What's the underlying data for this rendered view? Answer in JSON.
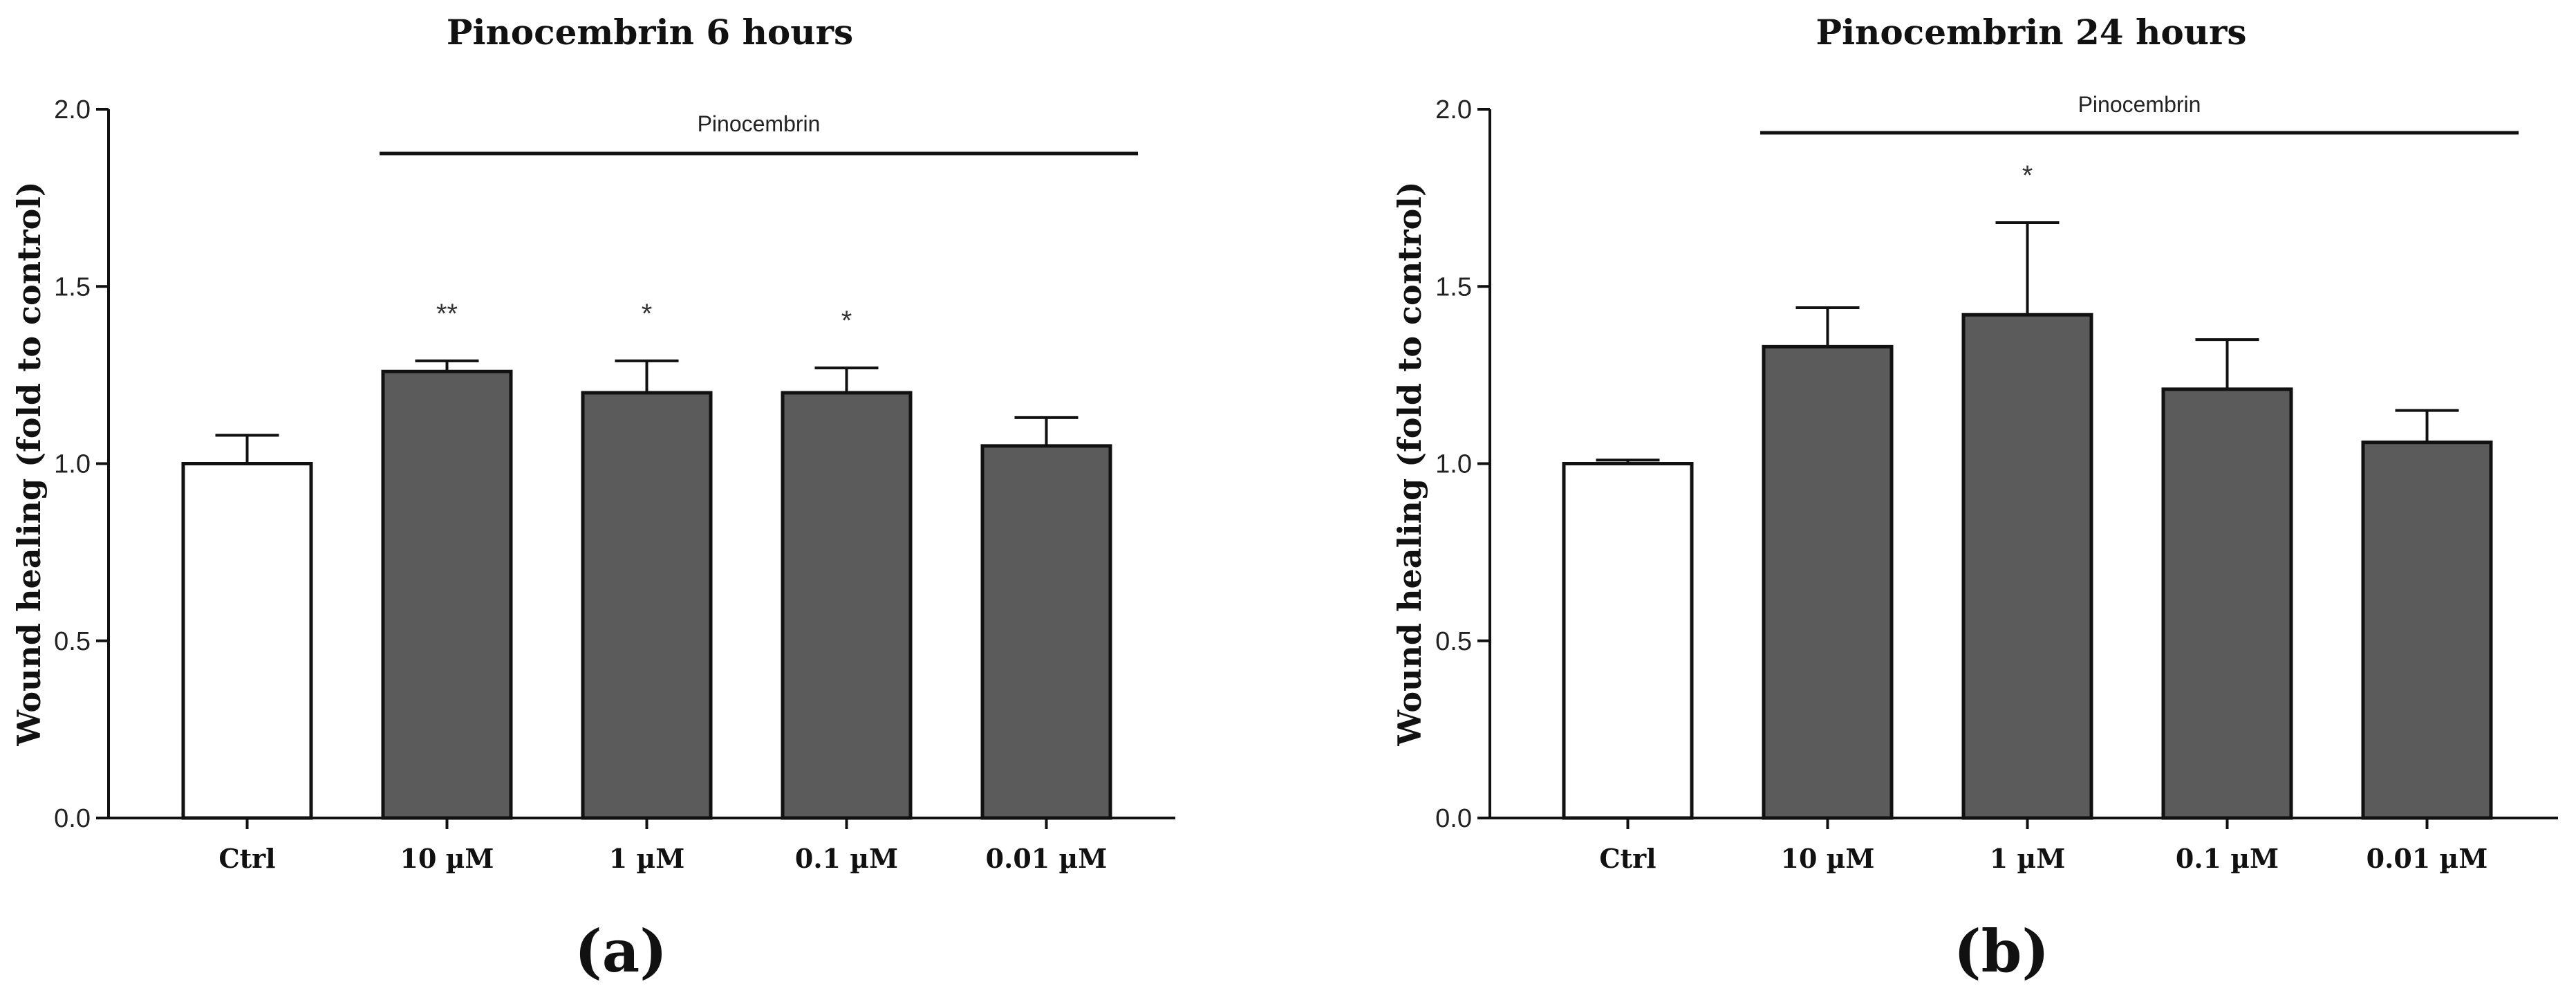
{
  "chart_data": [
    {
      "type": "bar",
      "title": "Pinocembrin 6 hours",
      "panel_label": "(a)",
      "ylabel": "Wound healing (fold to control)",
      "xlabel": "",
      "ylim": [
        0,
        2.0
      ],
      "yticks": [
        "0.0",
        "0.5",
        "1.0",
        "1.5",
        "2.0"
      ],
      "categories": [
        "Ctrl",
        "10 µM",
        "1 µM",
        "0.1 µM",
        "0.01 µM"
      ],
      "values": [
        1.0,
        1.26,
        1.2,
        1.2,
        1.05
      ],
      "errors": [
        0.08,
        0.03,
        0.09,
        0.07,
        0.08
      ],
      "fill": [
        "#ffffff",
        "#5b5b5b",
        "#5b5b5b",
        "#5b5b5b",
        "#5b5b5b"
      ],
      "significance": [
        "",
        "**",
        "*",
        "*",
        ""
      ],
      "group_label": "Pinocembrin",
      "grid": false
    },
    {
      "type": "bar",
      "title": "Pinocembrin 24 hours",
      "panel_label": "(b)",
      "ylabel": "Wound healing (fold to control)",
      "xlabel": "",
      "ylim": [
        0,
        2.0
      ],
      "yticks": [
        "0.0",
        "0.5",
        "1.0",
        "1.5",
        "2.0"
      ],
      "categories": [
        "Ctrl",
        "10 µM",
        "1 µM",
        "0.1 µM",
        "0.01 µM"
      ],
      "values": [
        1.0,
        1.33,
        1.42,
        1.21,
        1.06
      ],
      "errors": [
        0.01,
        0.11,
        0.26,
        0.14,
        0.09
      ],
      "fill": [
        "#ffffff",
        "#5b5b5b",
        "#5b5b5b",
        "#5b5b5b",
        "#5b5b5b"
      ],
      "significance": [
        "",
        "",
        "*",
        "",
        ""
      ],
      "group_label": "Pinocembrin",
      "grid": false
    }
  ],
  "colors": {
    "axis": "#111111",
    "bar_edge": "#111111",
    "treatment": "#5b5b5b",
    "control": "#ffffff"
  }
}
